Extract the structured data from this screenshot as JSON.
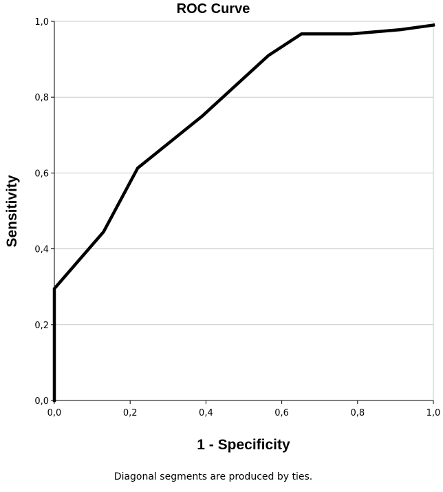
{
  "chart_data": {
    "type": "line",
    "title": "ROC Curve",
    "xlabel": "1 - Specificity",
    "ylabel": "Sensitivity",
    "footnote": "Diagonal segments are produced by ties.",
    "xlim": [
      0,
      1
    ],
    "ylim": [
      0,
      1
    ],
    "x_tick_labels": [
      "0,0",
      "0,2",
      "0,4",
      "0,6",
      "0,8",
      "1,0"
    ],
    "y_tick_labels": [
      "0,0",
      "0,2",
      "0,4",
      "0,6",
      "0,8",
      "1,0"
    ],
    "grid": "horizontal",
    "series": [
      {
        "x": [
          0.0,
          0.0,
          0.13,
          0.22,
          0.39,
          0.565,
          0.652,
          0.783,
          0.913,
          1.0
        ],
        "y": [
          0.0,
          0.295,
          0.445,
          0.613,
          0.75,
          0.91,
          0.967,
          0.967,
          0.978,
          0.99
        ]
      }
    ],
    "colors": {
      "line": "#000000",
      "grid": "#c8c8c8",
      "axis": "#000000",
      "frame": "#c8c8c8"
    }
  }
}
